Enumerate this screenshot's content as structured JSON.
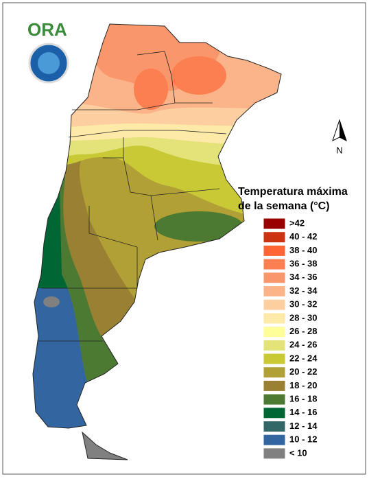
{
  "logo": {
    "text": "ORA"
  },
  "north_arrow": {
    "label": "N"
  },
  "legend": {
    "title_lines": [
      "Temperatura máxima",
      "de la semana (°C)"
    ],
    "items": [
      {
        "label": ">42",
        "color": "#990000"
      },
      {
        "label": "40 - 42",
        "color": "#cc3311"
      },
      {
        "label": "38 - 40",
        "color": "#ff6633"
      },
      {
        "label": "36 - 38",
        "color": "#fb7f50"
      },
      {
        "label": "34 - 36",
        "color": "#f9966b"
      },
      {
        "label": "32 - 34",
        "color": "#fbb48a"
      },
      {
        "label": "30 - 32",
        "color": "#fdcfa0"
      },
      {
        "label": "28 - 30",
        "color": "#fde9a8"
      },
      {
        "label": "26 - 28",
        "color": "#ffff99"
      },
      {
        "label": "24 - 26",
        "color": "#e3e37a"
      },
      {
        "label": "22 - 24",
        "color": "#c9c935"
      },
      {
        "label": "20 - 22",
        "color": "#b0a035"
      },
      {
        "label": "18 - 20",
        "color": "#998033"
      },
      {
        "label": "16 - 18",
        "color": "#4d7a33"
      },
      {
        "label": "14 - 16",
        "color": "#006633"
      },
      {
        "label": "12 - 14",
        "color": "#336666"
      },
      {
        "label": "10 - 12",
        "color": "#3366a0"
      },
      {
        "label": "< 10",
        "color": "#808080"
      }
    ]
  }
}
